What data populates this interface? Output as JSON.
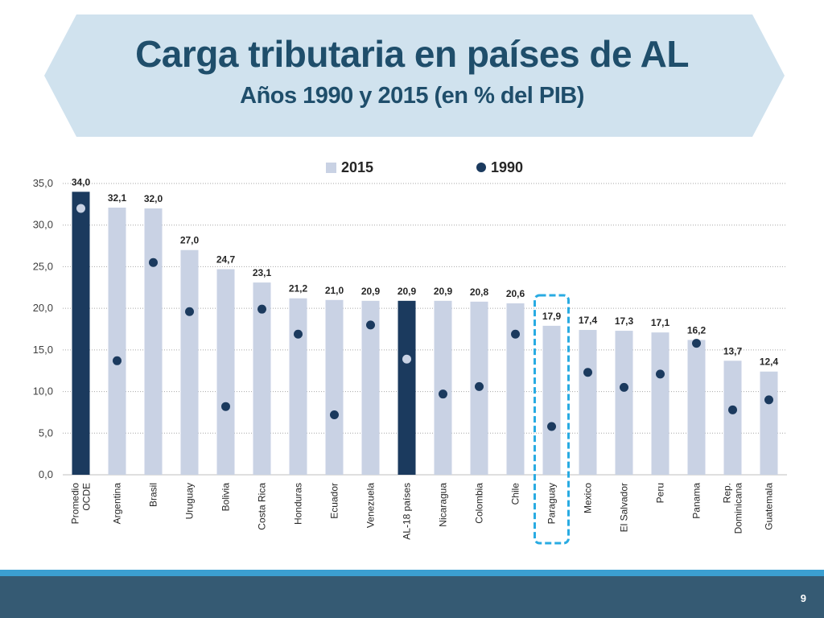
{
  "slide": {
    "title": "Carga tributaria en países de AL",
    "subtitle": "Años 1990 y 2015 (en % del PIB)",
    "page_number": "9"
  },
  "colors": {
    "bar_2015": "#c9d2e4",
    "bar_highlight": "#1b3a5e",
    "dot_1990": "#1b3a5e",
    "dot_highlight": "#c9d2e4",
    "banner": "#d0e2ee",
    "title": "#1f4e6b",
    "highlight_box": "#29abe2"
  },
  "chart_data": {
    "type": "bar",
    "categories": [
      "Promedio OCDE",
      "Argentina",
      "Brasil",
      "Uruguay",
      "Bolivia",
      "Costa Rica",
      "Honduras",
      "Ecuador",
      "Venezuela",
      "AL-18 países",
      "Nicaragua",
      "Colombia",
      "Chile",
      "Paraguay",
      "Mexico",
      "El Salvador",
      "Peru",
      "Panama",
      "Rep. Dominicana",
      "Guatemala"
    ],
    "category_lines": [
      [
        "Promedio",
        "OCDE"
      ],
      [
        "Argentina"
      ],
      [
        "Brasil"
      ],
      [
        "Uruguay"
      ],
      [
        "Bolivia"
      ],
      [
        "Costa Rica"
      ],
      [
        "Honduras"
      ],
      [
        "Ecuador"
      ],
      [
        "Venezuela"
      ],
      [
        "AL-18 países"
      ],
      [
        "Nicaragua"
      ],
      [
        "Colombia"
      ],
      [
        "Chile"
      ],
      [
        "Paraguay"
      ],
      [
        "Mexico"
      ],
      [
        "El Salvador"
      ],
      [
        "Peru"
      ],
      [
        "Panama"
      ],
      [
        "Rep.",
        "Dominicana"
      ],
      [
        "Guatemala"
      ]
    ],
    "series": [
      {
        "name": "2015",
        "kind": "bar",
        "values": [
          34.0,
          32.1,
          32.0,
          27.0,
          24.7,
          23.1,
          21.2,
          21.0,
          20.9,
          20.9,
          20.9,
          20.8,
          20.6,
          17.9,
          17.4,
          17.3,
          17.1,
          16.2,
          13.7,
          12.4
        ]
      },
      {
        "name": "1990",
        "kind": "dot",
        "values": [
          32.0,
          13.7,
          25.5,
          19.6,
          8.2,
          19.9,
          16.9,
          7.2,
          18.0,
          13.9,
          9.7,
          10.6,
          16.9,
          5.8,
          12.3,
          10.5,
          12.1,
          15.8,
          7.8,
          9.0
        ]
      }
    ],
    "data_labels": [
      "34,0",
      "32,1",
      "32,0",
      "27,0",
      "24,7",
      "23,1",
      "21,2",
      "21,0",
      "20,9",
      "20,9",
      "20,9",
      "20,8",
      "20,6",
      "17,9",
      "17,4",
      "17,3",
      "17,1",
      "16,2",
      "13,7",
      "12,4"
    ],
    "highlighted_bars": [
      "Promedio OCDE",
      "AL-18 países"
    ],
    "boxed_category": "Paraguay",
    "y_ticks": [
      "0,0",
      "5,0",
      "10,0",
      "15,0",
      "20,0",
      "25,0",
      "30,0",
      "35,0"
    ],
    "ylim": [
      0,
      35
    ],
    "grid": true,
    "legend_position": "top-center",
    "title": "",
    "xlabel": "",
    "ylabel": ""
  }
}
